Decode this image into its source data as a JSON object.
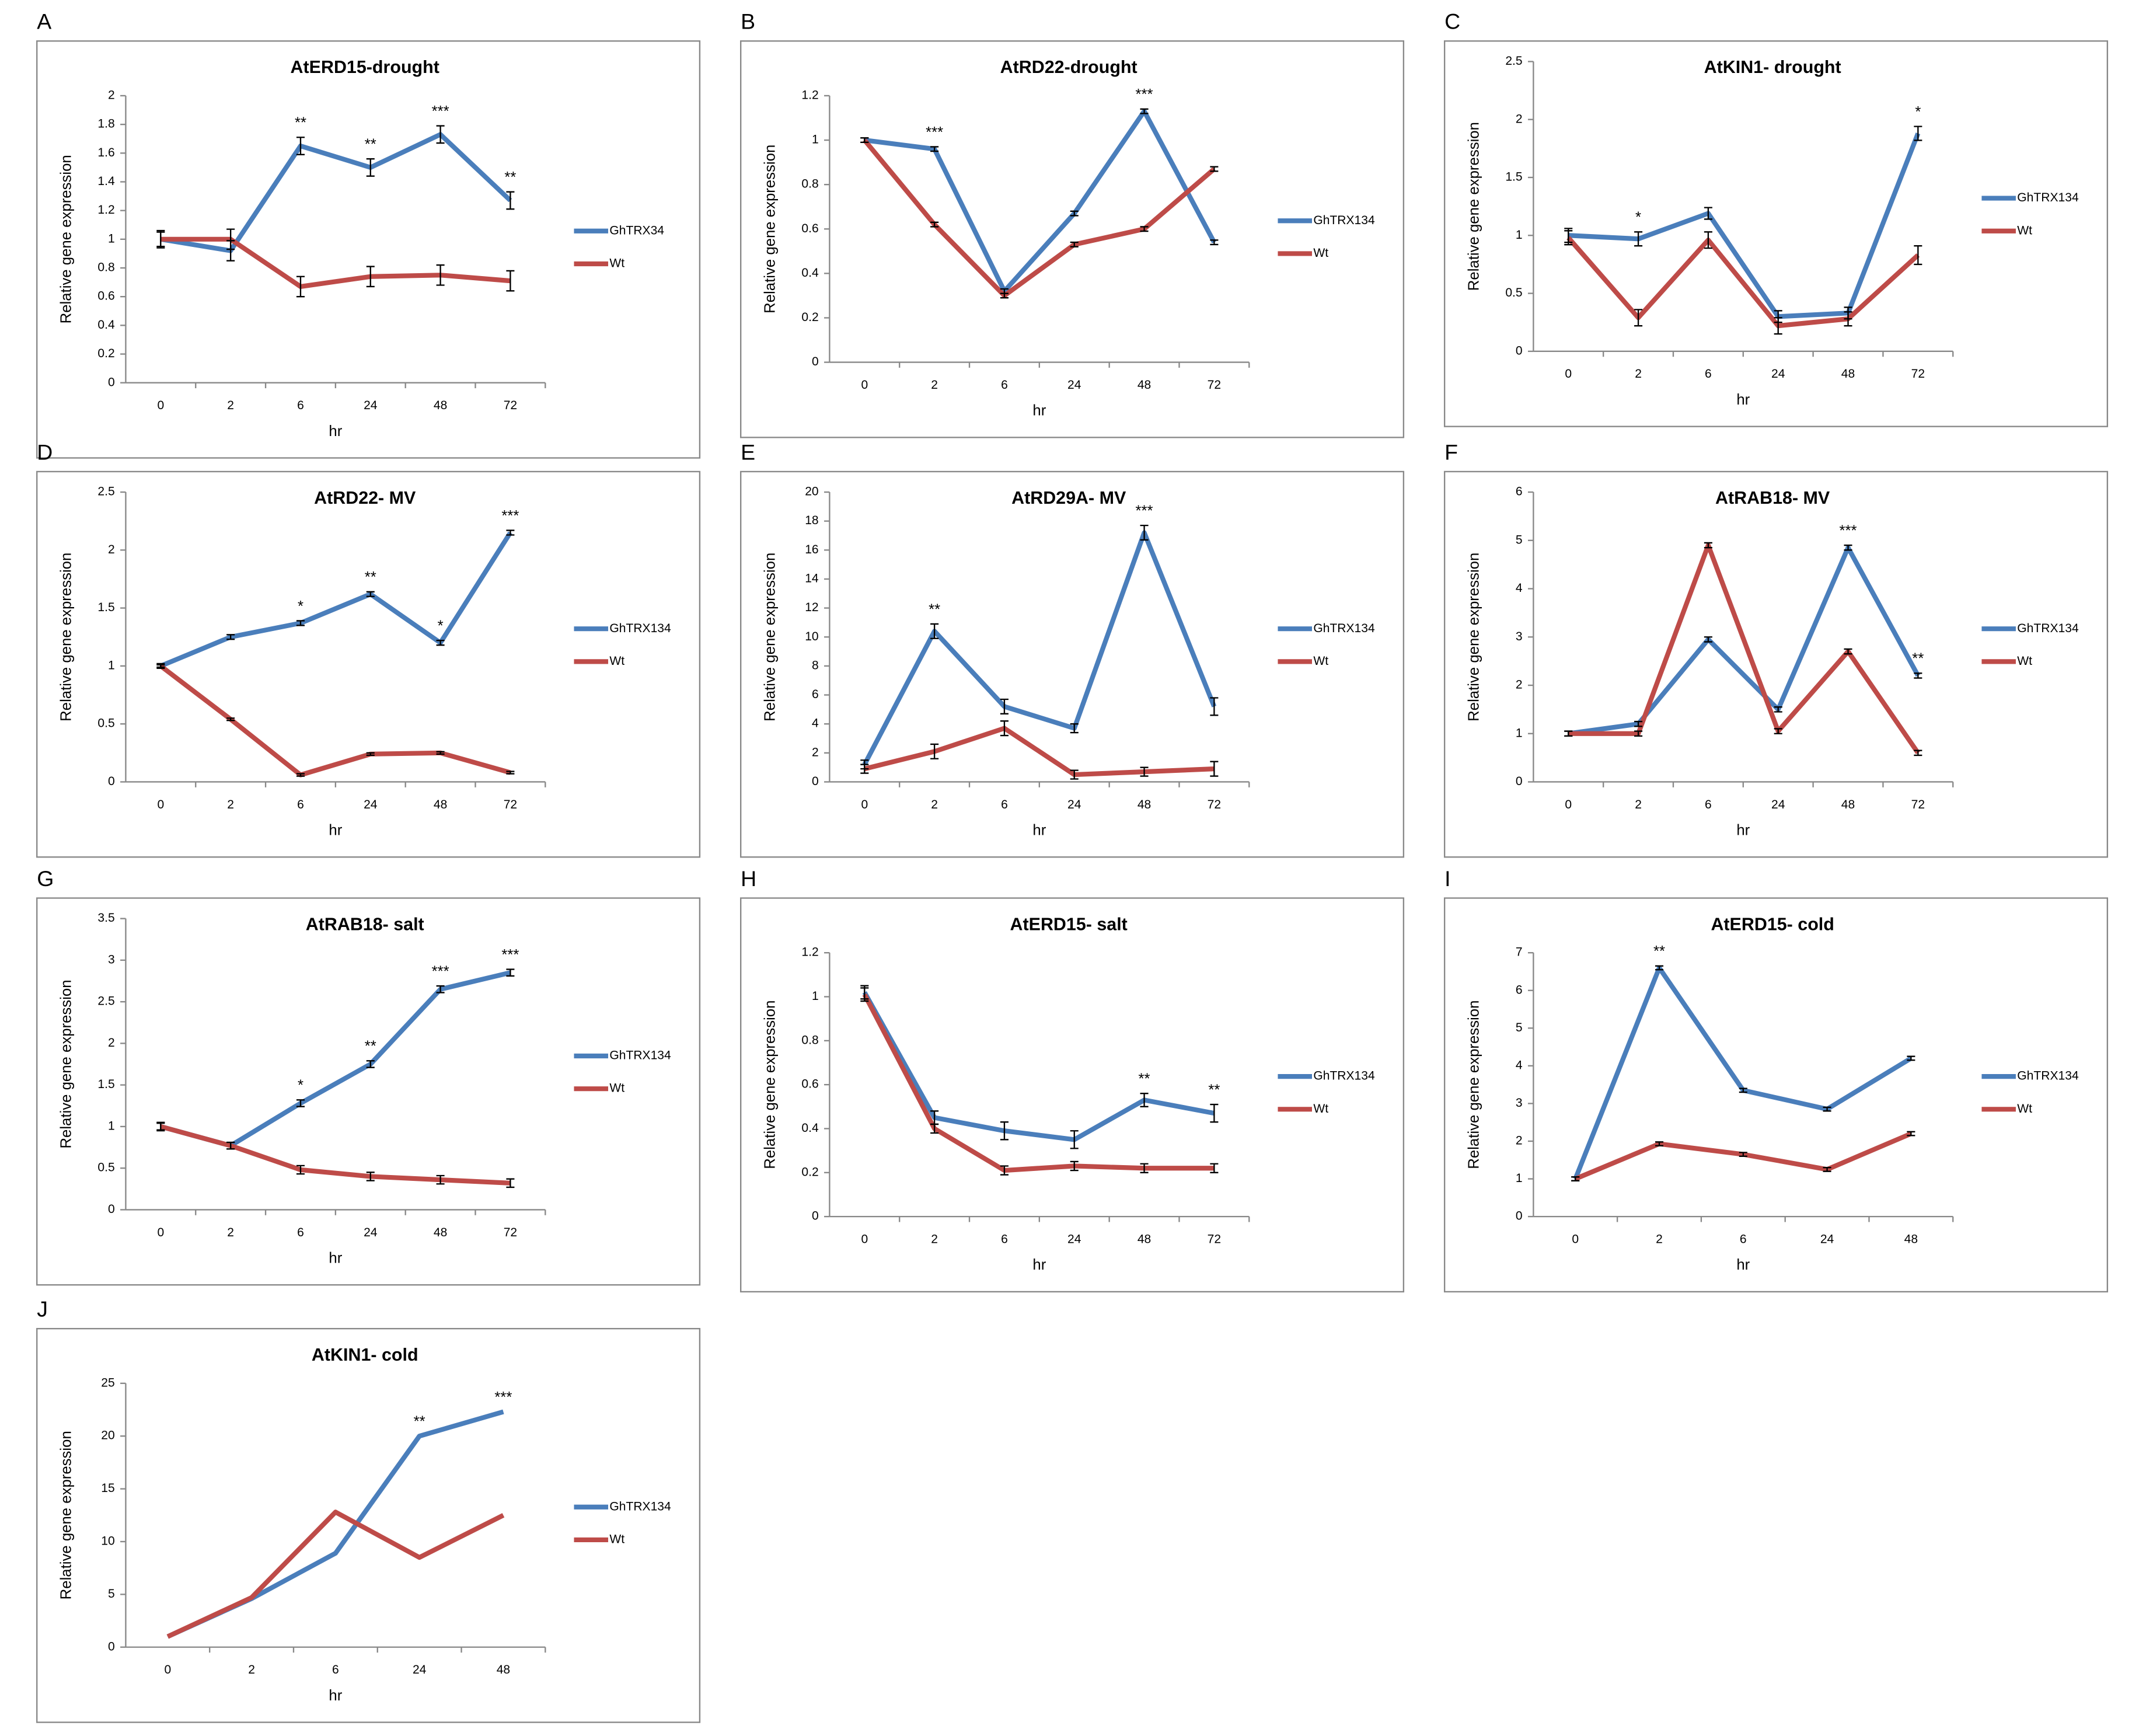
{
  "chart_data": [
    {
      "type": "line",
      "panel": "A",
      "title": "AtERD15-drought",
      "xlabel": "hr",
      "ylabel": "Relative gene expression",
      "categories": [
        "0",
        "2",
        "6",
        "24",
        "48",
        "72"
      ],
      "ylim": [
        0,
        2
      ],
      "yticks": [
        0,
        0.2,
        0.4,
        0.6,
        0.8,
        1,
        1.2,
        1.4,
        1.6,
        1.8,
        2
      ],
      "series": [
        {
          "name": "GhTRX34",
          "color": "#4a7ebb",
          "values": [
            1,
            0.92,
            1.65,
            1.5,
            1.73,
            1.27
          ],
          "errors": [
            0.06,
            0.07,
            0.06,
            0.06,
            0.06,
            0.06
          ],
          "significance": [
            null,
            null,
            "**",
            "**",
            "***",
            "**"
          ]
        },
        {
          "name": "Wt",
          "color": "#be4b48",
          "values": [
            1,
            1,
            0.67,
            0.74,
            0.75,
            0.71
          ],
          "errors": [
            0.05,
            0.07,
            0.07,
            0.07,
            0.07,
            0.07
          ]
        }
      ]
    },
    {
      "type": "line",
      "panel": "B",
      "title": "AtRD22-drought",
      "xlabel": "hr",
      "ylabel": "Relative gene expression",
      "categories": [
        "0",
        "2",
        "6",
        "24",
        "48",
        "72"
      ],
      "ylim": [
        0,
        1.2
      ],
      "yticks": [
        0,
        0.2,
        0.4,
        0.6,
        0.8,
        1,
        1.2
      ],
      "series": [
        {
          "name": "GhTRX134",
          "color": "#4a7ebb",
          "values": [
            1,
            0.96,
            0.32,
            0.67,
            1.13,
            0.54
          ],
          "errors": [
            0.01,
            0.01,
            0.01,
            0.01,
            0.01,
            0.01
          ],
          "significance": [
            null,
            "***",
            null,
            null,
            "***",
            null
          ]
        },
        {
          "name": "Wt",
          "color": "#be4b48",
          "values": [
            1,
            0.62,
            0.3,
            0.53,
            0.6,
            0.87
          ],
          "errors": [
            0.01,
            0.01,
            0.01,
            0.01,
            0.01,
            0.01
          ]
        }
      ]
    },
    {
      "type": "line",
      "panel": "C",
      "title": "AtKIN1- drought",
      "xlabel": "hr",
      "ylabel": "Relative gene expression",
      "categories": [
        "0",
        "2",
        "6",
        "24",
        "48",
        "72"
      ],
      "ylim": [
        0,
        2.5
      ],
      "yticks": [
        0,
        0.5,
        1,
        1.5,
        2,
        2.5
      ],
      "series": [
        {
          "name": "GhTRX134",
          "color": "#4a7ebb",
          "values": [
            1,
            0.97,
            1.19,
            0.3,
            0.33,
            1.88
          ],
          "errors": [
            0.06,
            0.06,
            0.05,
            0.05,
            0.05,
            0.06
          ],
          "significance": [
            null,
            "*",
            null,
            null,
            null,
            "*"
          ]
        },
        {
          "name": "Wt",
          "color": "#be4b48",
          "values": [
            0.98,
            0.29,
            0.96,
            0.22,
            0.28,
            0.83
          ],
          "errors": [
            0.06,
            0.07,
            0.07,
            0.07,
            0.06,
            0.08
          ]
        }
      ]
    },
    {
      "type": "line",
      "panel": "D",
      "title": "AtRD22- MV",
      "xlabel": "hr",
      "ylabel": "Relative gene expression",
      "categories": [
        "0",
        "2",
        "6",
        "24",
        "48",
        "72"
      ],
      "ylim": [
        0,
        2.5
      ],
      "yticks": [
        0,
        0.5,
        1,
        1.5,
        2,
        2.5
      ],
      "series": [
        {
          "name": "GhTRX134",
          "color": "#4a7ebb",
          "values": [
            1,
            1.25,
            1.37,
            1.62,
            1.2,
            2.15
          ],
          "errors": [
            0.02,
            0.02,
            0.02,
            0.02,
            0.02,
            0.02
          ],
          "significance": [
            null,
            null,
            "*",
            "**",
            "*",
            "***"
          ]
        },
        {
          "name": "Wt",
          "color": "#be4b48",
          "values": [
            1,
            0.54,
            0.06,
            0.24,
            0.25,
            0.08
          ],
          "errors": [
            0.01,
            0.01,
            0.01,
            0.01,
            0.01,
            0.01
          ]
        }
      ]
    },
    {
      "type": "line",
      "panel": "E",
      "title": "AtRD29A- MV",
      "xlabel": "hr",
      "ylabel": "Relative gene expression",
      "categories": [
        "0",
        "2",
        "6",
        "24",
        "48",
        "72"
      ],
      "ylim": [
        0,
        20
      ],
      "yticks": [
        0,
        2,
        4,
        6,
        8,
        10,
        12,
        14,
        16,
        18,
        20
      ],
      "series": [
        {
          "name": "GhTRX134",
          "color": "#4a7ebb",
          "values": [
            1.2,
            10.4,
            5.2,
            3.7,
            17.2,
            5.2
          ],
          "errors": [
            0.3,
            0.5,
            0.5,
            0.3,
            0.5,
            0.6
          ],
          "significance": [
            null,
            "**",
            null,
            null,
            "***",
            null
          ]
        },
        {
          "name": "Wt",
          "color": "#be4b48",
          "values": [
            0.9,
            2.1,
            3.7,
            0.5,
            0.7,
            0.9
          ],
          "errors": [
            0.3,
            0.5,
            0.5,
            0.3,
            0.3,
            0.5
          ]
        }
      ]
    },
    {
      "type": "line",
      "panel": "F",
      "title": "AtRAB18- MV",
      "xlabel": "hr",
      "ylabel": "Relative gene expression",
      "categories": [
        "0",
        "2",
        "6",
        "24",
        "48",
        "72"
      ],
      "ylim": [
        0,
        6
      ],
      "yticks": [
        0,
        1,
        2,
        3,
        4,
        5,
        6
      ],
      "series": [
        {
          "name": "GhTRX134",
          "color": "#4a7ebb",
          "values": [
            1,
            1.2,
            2.95,
            1.5,
            4.85,
            2.2
          ],
          "errors": [
            0.05,
            0.05,
            0.05,
            0.05,
            0.05,
            0.05
          ],
          "significance": [
            null,
            null,
            null,
            null,
            "***",
            "**"
          ]
        },
        {
          "name": "Wt",
          "color": "#be4b48",
          "values": [
            1,
            1,
            4.9,
            1.05,
            2.7,
            0.6
          ],
          "errors": [
            0.05,
            0.05,
            0.05,
            0.05,
            0.05,
            0.05
          ]
        }
      ]
    },
    {
      "type": "line",
      "panel": "G",
      "title": "AtRAB18- salt",
      "xlabel": "hr",
      "ylabel": "Relative gene expression",
      "categories": [
        "0",
        "2",
        "6",
        "24",
        "48",
        "72"
      ],
      "ylim": [
        0,
        3.5
      ],
      "yticks": [
        0,
        0.5,
        1,
        1.5,
        2,
        2.5,
        3,
        3.5
      ],
      "series": [
        {
          "name": "GhTRX134",
          "color": "#4a7ebb",
          "values": [
            1,
            0.77,
            1.28,
            1.75,
            2.65,
            2.85
          ],
          "errors": [
            0.04,
            0.04,
            0.04,
            0.04,
            0.04,
            0.04
          ],
          "significance": [
            null,
            null,
            "*",
            "**",
            "***",
            "***"
          ]
        },
        {
          "name": "Wt",
          "color": "#be4b48",
          "values": [
            1,
            0.77,
            0.48,
            0.4,
            0.36,
            0.32
          ],
          "errors": [
            0.05,
            0.04,
            0.05,
            0.05,
            0.05,
            0.05
          ]
        }
      ]
    },
    {
      "type": "line",
      "panel": "H",
      "title": "AtERD15- salt",
      "xlabel": "hr",
      "ylabel": "Relative gene expression",
      "categories": [
        "0",
        "2",
        "6",
        "24",
        "48",
        "72"
      ],
      "ylim": [
        0,
        1.2
      ],
      "yticks": [
        0,
        0.2,
        0.4,
        0.6,
        0.8,
        1,
        1.2
      ],
      "series": [
        {
          "name": "GhTRX134",
          "color": "#4a7ebb",
          "values": [
            1.02,
            0.45,
            0.39,
            0.35,
            0.53,
            0.47
          ],
          "errors": [
            0.03,
            0.03,
            0.04,
            0.04,
            0.03,
            0.04
          ],
          "significance": [
            null,
            null,
            null,
            null,
            "**",
            "**"
          ]
        },
        {
          "name": "Wt",
          "color": "#be4b48",
          "values": [
            1.01,
            0.4,
            0.21,
            0.23,
            0.22,
            0.22
          ],
          "errors": [
            0.03,
            0.02,
            0.02,
            0.02,
            0.02,
            0.02
          ]
        }
      ]
    },
    {
      "type": "line",
      "panel": "I",
      "title": "AtERD15- cold",
      "xlabel": "hr",
      "ylabel": "Relative gene expression",
      "categories": [
        "0",
        "2",
        "6",
        "24",
        "48"
      ],
      "ylim": [
        0,
        7
      ],
      "yticks": [
        0,
        1,
        2,
        3,
        4,
        5,
        6,
        7
      ],
      "series": [
        {
          "name": "GhTRX134",
          "color": "#4a7ebb",
          "values": [
            1,
            6.6,
            3.35,
            2.85,
            4.2
          ],
          "errors": [
            0.05,
            0.05,
            0.05,
            0.05,
            0.05
          ],
          "significance": [
            null,
            "**",
            null,
            null,
            null
          ]
        },
        {
          "name": "Wt",
          "color": "#be4b48",
          "values": [
            1,
            1.93,
            1.65,
            1.25,
            2.2
          ],
          "errors": [
            0.05,
            0.05,
            0.05,
            0.05,
            0.05
          ]
        }
      ]
    },
    {
      "type": "line",
      "panel": "J",
      "title": "AtKIN1- cold",
      "xlabel": "hr",
      "ylabel": "Relative gene expression",
      "categories": [
        "0",
        "2",
        "6",
        "24",
        "48"
      ],
      "ylim": [
        0,
        25
      ],
      "yticks": [
        0,
        5,
        10,
        15,
        20,
        25
      ],
      "series": [
        {
          "name": "GhTRX134",
          "color": "#4a7ebb",
          "values": [
            1,
            4.6,
            8.9,
            20,
            22.3
          ],
          "significance": [
            null,
            null,
            null,
            "**",
            "***"
          ]
        },
        {
          "name": "Wt",
          "color": "#be4b48",
          "values": [
            1,
            4.7,
            12.8,
            8.5,
            12.5
          ]
        }
      ]
    }
  ]
}
